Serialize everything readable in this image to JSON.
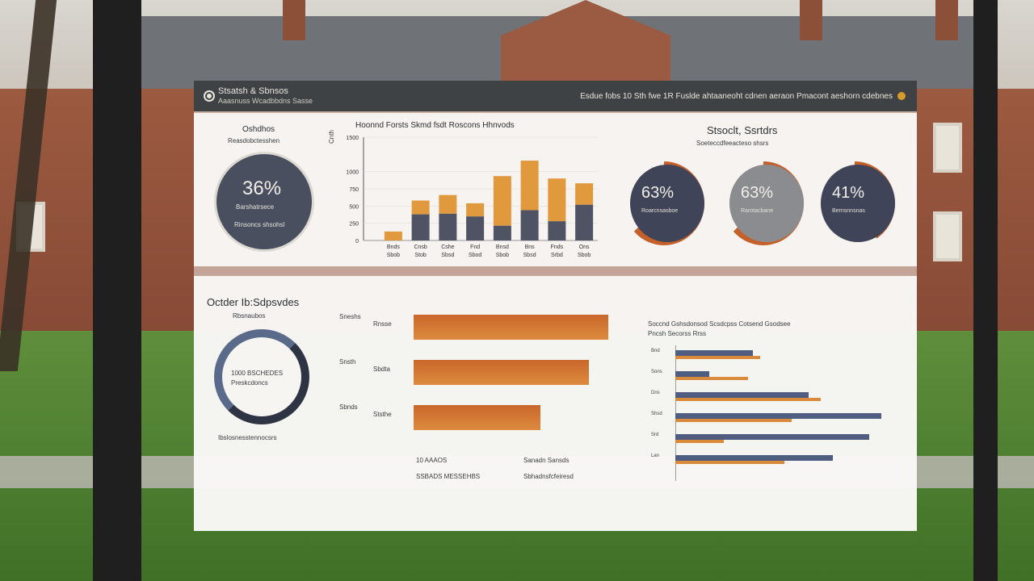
{
  "header": {
    "title": "Stsatsh & Sbnsos",
    "subtitle": "Aaasnuss Wcadbbdns Sasse",
    "right_text": "Esdue fobs 10 Sth fwe 1R Fuslde ahtaaneoht cdnen aeraon Pmacont aeshorn cdebnes"
  },
  "kpi_left": {
    "title": "Oshdhos",
    "subtitle": "Reasdobctesshen",
    "value": "36%",
    "caption_1": "Barshatrsece",
    "caption_2": "Rinsoncs shsohsl"
  },
  "top_chart": {
    "title": "Hoonnd Forsts Skmd fsdt Roscons Hhnvods",
    "ylabel": "Cnth",
    "y_ticks": [
      "1500",
      "1000",
      "750",
      "500",
      "250",
      "0"
    ],
    "x_labels_row1": [
      "Bnds",
      "Cnsb",
      "Cshe",
      "Fnd",
      "Bnsd",
      "Bns",
      "Fnds",
      "Ons"
    ],
    "x_labels_row2": [
      "Sbob",
      "Stob",
      "Sbsd",
      "Sbod",
      "Sbob",
      "Sbsd",
      "Srbd",
      "Sbob"
    ]
  },
  "chart_data": {
    "type": "bar",
    "stacked": true,
    "categories": [
      "Bnds",
      "Cnsb",
      "Cshe",
      "Fnd",
      "Bnsd",
      "Bns",
      "Fnds",
      "Ons"
    ],
    "series": [
      {
        "name": "",
        "values": [
          0,
          380,
          390,
          350,
          215,
          440,
          280,
          520
        ],
        "color": "#4f5363"
      },
      {
        "name": "",
        "values": [
          130,
          200,
          270,
          190,
          720,
          720,
          620,
          310
        ],
        "color": "#e1993d"
      },
      {
        "name": "",
        "values": [
          0,
          0,
          0,
          0,
          0,
          0,
          0,
          0
        ],
        "color": "#c6602a"
      }
    ],
    "ylim": [
      0,
      1500
    ]
  },
  "kpi_right": {
    "title": "Stsoclt, Ssrtdrs",
    "subtitle": "Soeteccdfeeacteso shsrs",
    "items": [
      {
        "value": "63%",
        "label": "Roarcnsasboe",
        "fill": 0.63
      },
      {
        "value": "63%",
        "label": "Rarotacbane",
        "fill": 0.63
      },
      {
        "value": "41%",
        "label": "Bernsnnsnas",
        "fill": 0.41
      }
    ]
  },
  "bottom_left": {
    "title": "Octder Ib:Sdpsvdes",
    "subtitle": "Rbsnaubos",
    "ring_text_1": "1000 BSCHEDES",
    "ring_text_2": "Preskcdoncs",
    "caption": "Ibslosnesstennocsrs"
  },
  "bottom_bars": {
    "items": [
      {
        "label": "Sneshs",
        "sublabel": "Rnsse",
        "value": 0.92
      },
      {
        "label": "Snsth",
        "sublabel": "Sbdta",
        "value": 0.83
      },
      {
        "label": "Sbnds",
        "sublabel": "Ststhe",
        "value": 0.6
      }
    ],
    "footer_1": "10 AAAOS",
    "footer_2": "SSBADS MESSEHBS",
    "footer_3": "Sanadn Sansds",
    "footer_4": "Sbhadnsfcfeiresd"
  },
  "bottom_right": {
    "title": "Soccnd Gshsdonsod Scsdcpss Cotsend Gsodsee",
    "subtitle": "Pncsh Secorss Rrss",
    "rows": [
      {
        "label": "Bnd",
        "dark": 0.32,
        "orange": 0.35
      },
      {
        "label": "Sons",
        "dark": 0.14,
        "orange": 0.3
      },
      {
        "label": "Dns",
        "dark": 0.55,
        "orange": 0.6
      },
      {
        "label": "Shsd",
        "dark": 0.85,
        "orange": 0.48
      },
      {
        "label": "Srd",
        "dark": 0.8,
        "orange": 0.2
      },
      {
        "label": "Lan",
        "dark": 0.65,
        "orange": 0.45
      }
    ]
  }
}
